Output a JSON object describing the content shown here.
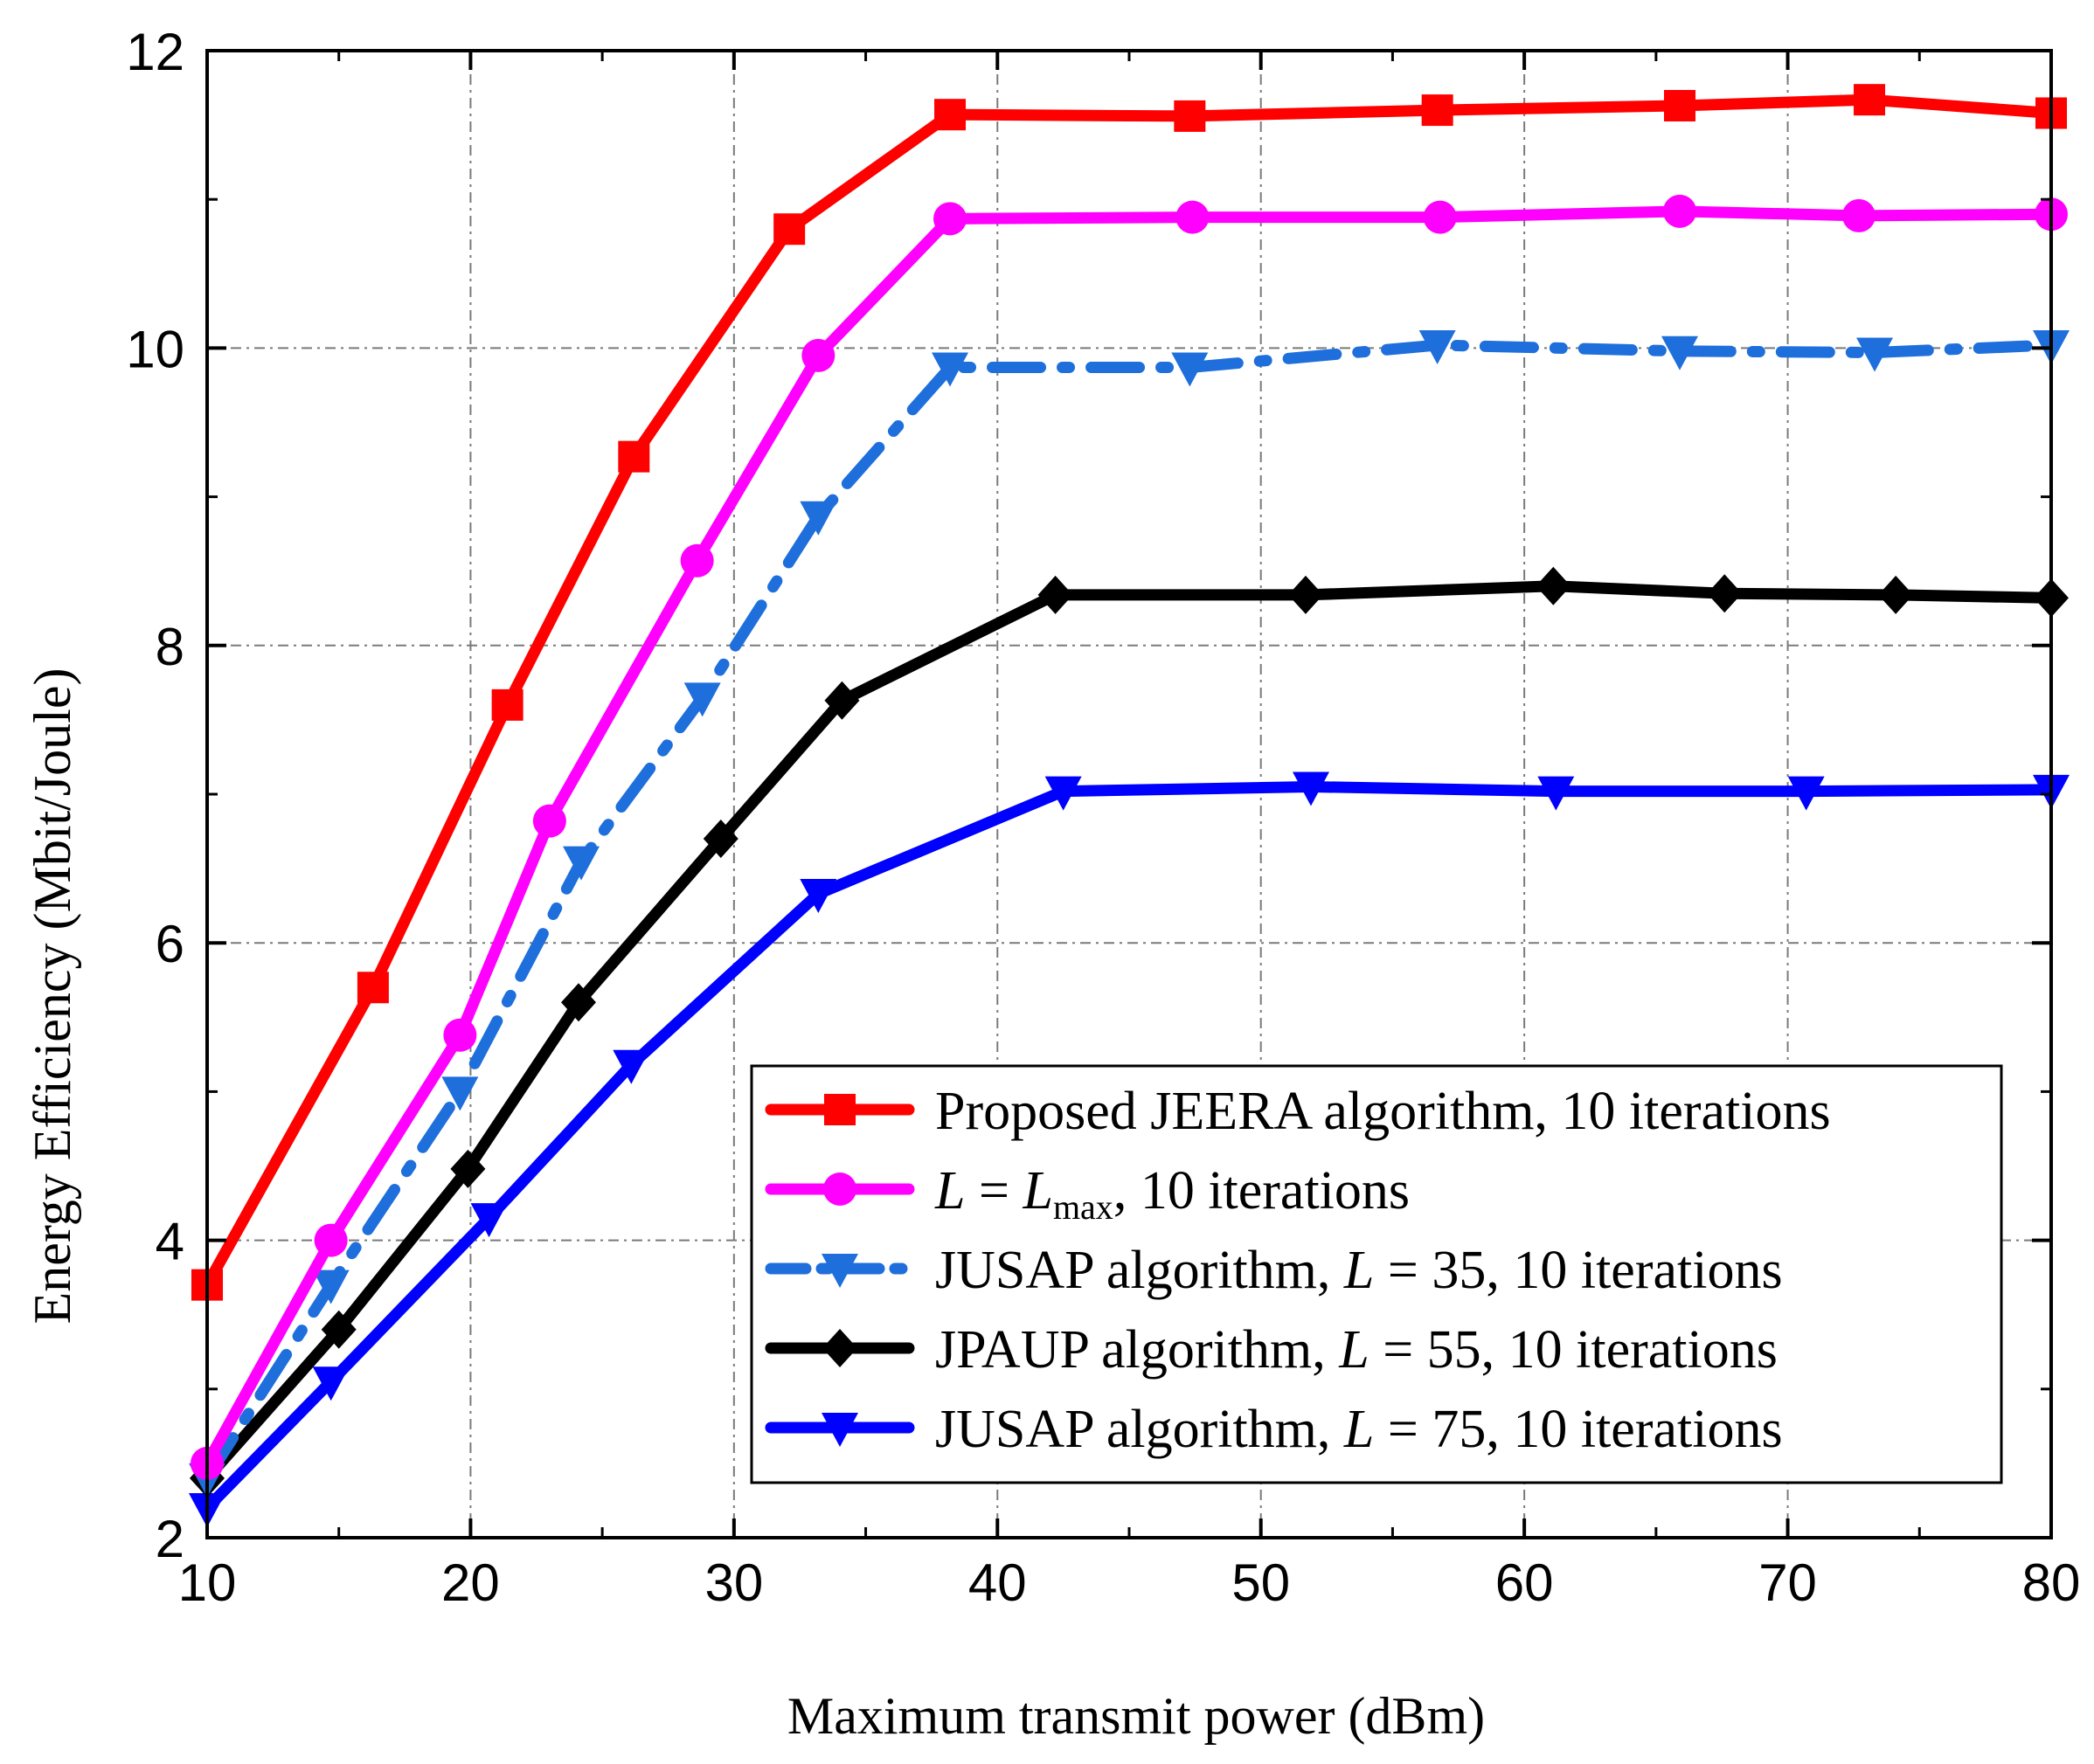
{
  "chart_data": {
    "type": "line",
    "title": "",
    "xlabel": "Maximum transmit power (dBm)",
    "ylabel": "Energy Efficiency (Mbit/Joule)",
    "xlim": [
      10,
      80
    ],
    "ylim": [
      2,
      12
    ],
    "xticks": [
      "10",
      "20",
      "30",
      "40",
      "50",
      "60",
      "70",
      "80"
    ],
    "yticks": [
      "2",
      "4",
      "6",
      "8",
      "10",
      "12"
    ],
    "grid": true,
    "legend_position": "bottom-right",
    "series": [
      {
        "name": "Proposed JEERA algorithm, 10 iterations",
        "legend_parts": {
          "pre": "Proposed JEERA algorithm, 10 iterations"
        },
        "color": "#ff0000",
        "marker": "square",
        "line_style": "solid",
        "x": [
          10,
          16.3,
          21.4,
          26.2,
          32.1,
          38.2,
          47.3,
          56.7,
          65.9,
          73.1,
          80
        ],
        "y": [
          3.7,
          5.7,
          7.6,
          9.27,
          10.8,
          11.57,
          11.56,
          11.6,
          11.63,
          11.67,
          11.58
        ]
      },
      {
        "name": "L = Lmax, 10 iterations",
        "legend_parts": {
          "var": "L",
          "eq": " = ",
          "var2": "L",
          "sub": "max",
          "post": ",  10 iterations"
        },
        "color": "#ff00ff",
        "marker": "circle",
        "line_style": "solid",
        "x": [
          10,
          14.7,
          19.6,
          23,
          28.6,
          33.2,
          38.2,
          47.4,
          56.8,
          65.9,
          72.7,
          80
        ],
        "y": [
          2.5,
          4.0,
          5.38,
          6.82,
          8.57,
          9.95,
          10.87,
          10.88,
          10.88,
          10.92,
          10.89,
          10.9
        ]
      },
      {
        "name": "JUSAP algorithm, L = 35, 10 iterations",
        "legend_parts": {
          "pre": "JUSAP algorithm, ",
          "var": "L",
          "post": " = 35, 10 iterations"
        },
        "color": "#1e6fdc",
        "marker": "triangle-down",
        "line_style": "dashdot",
        "x": [
          10,
          14.7,
          19.6,
          24.2,
          28.8,
          33.2,
          38.2,
          47.3,
          56.7,
          65.9,
          73.3,
          80
        ],
        "y": [
          2.4,
          3.7,
          5.0,
          6.55,
          7.65,
          8.87,
          9.87,
          9.87,
          10.02,
          9.98,
          9.97,
          10.02
        ]
      },
      {
        "name": "JPAUP algorithm, L = 55, 10 iterations",
        "legend_parts": {
          "pre": "JPAUP algorithm, ",
          "var": "L",
          "post": " = 55, 10 iterations"
        },
        "color": "#000000",
        "marker": "diamond",
        "line_style": "solid",
        "x": [
          10,
          15,
          19.9,
          24.1,
          29.5,
          34.1,
          42.2,
          51.7,
          61.1,
          67.6,
          74.1,
          80
        ],
        "y": [
          2.4,
          3.4,
          4.48,
          5.6,
          6.7,
          7.63,
          8.34,
          8.34,
          8.4,
          8.35,
          8.34,
          8.32
        ]
      },
      {
        "name": "JUSAP algorithm, L = 75, 10 iterations",
        "legend_parts": {
          "pre": "JUSAP algorithm, ",
          "var": "L",
          "post": " = 75, 10 iterations"
        },
        "color": "#0000ff",
        "marker": "triangle-down",
        "line_style": "solid",
        "x": [
          10,
          14.7,
          20.7,
          26.1,
          33.2,
          42.5,
          51.9,
          61.2,
          70.7,
          80
        ],
        "y": [
          2.2,
          3.05,
          4.15,
          5.18,
          6.33,
          7.02,
          7.05,
          7.02,
          7.02,
          7.03
        ]
      }
    ]
  }
}
